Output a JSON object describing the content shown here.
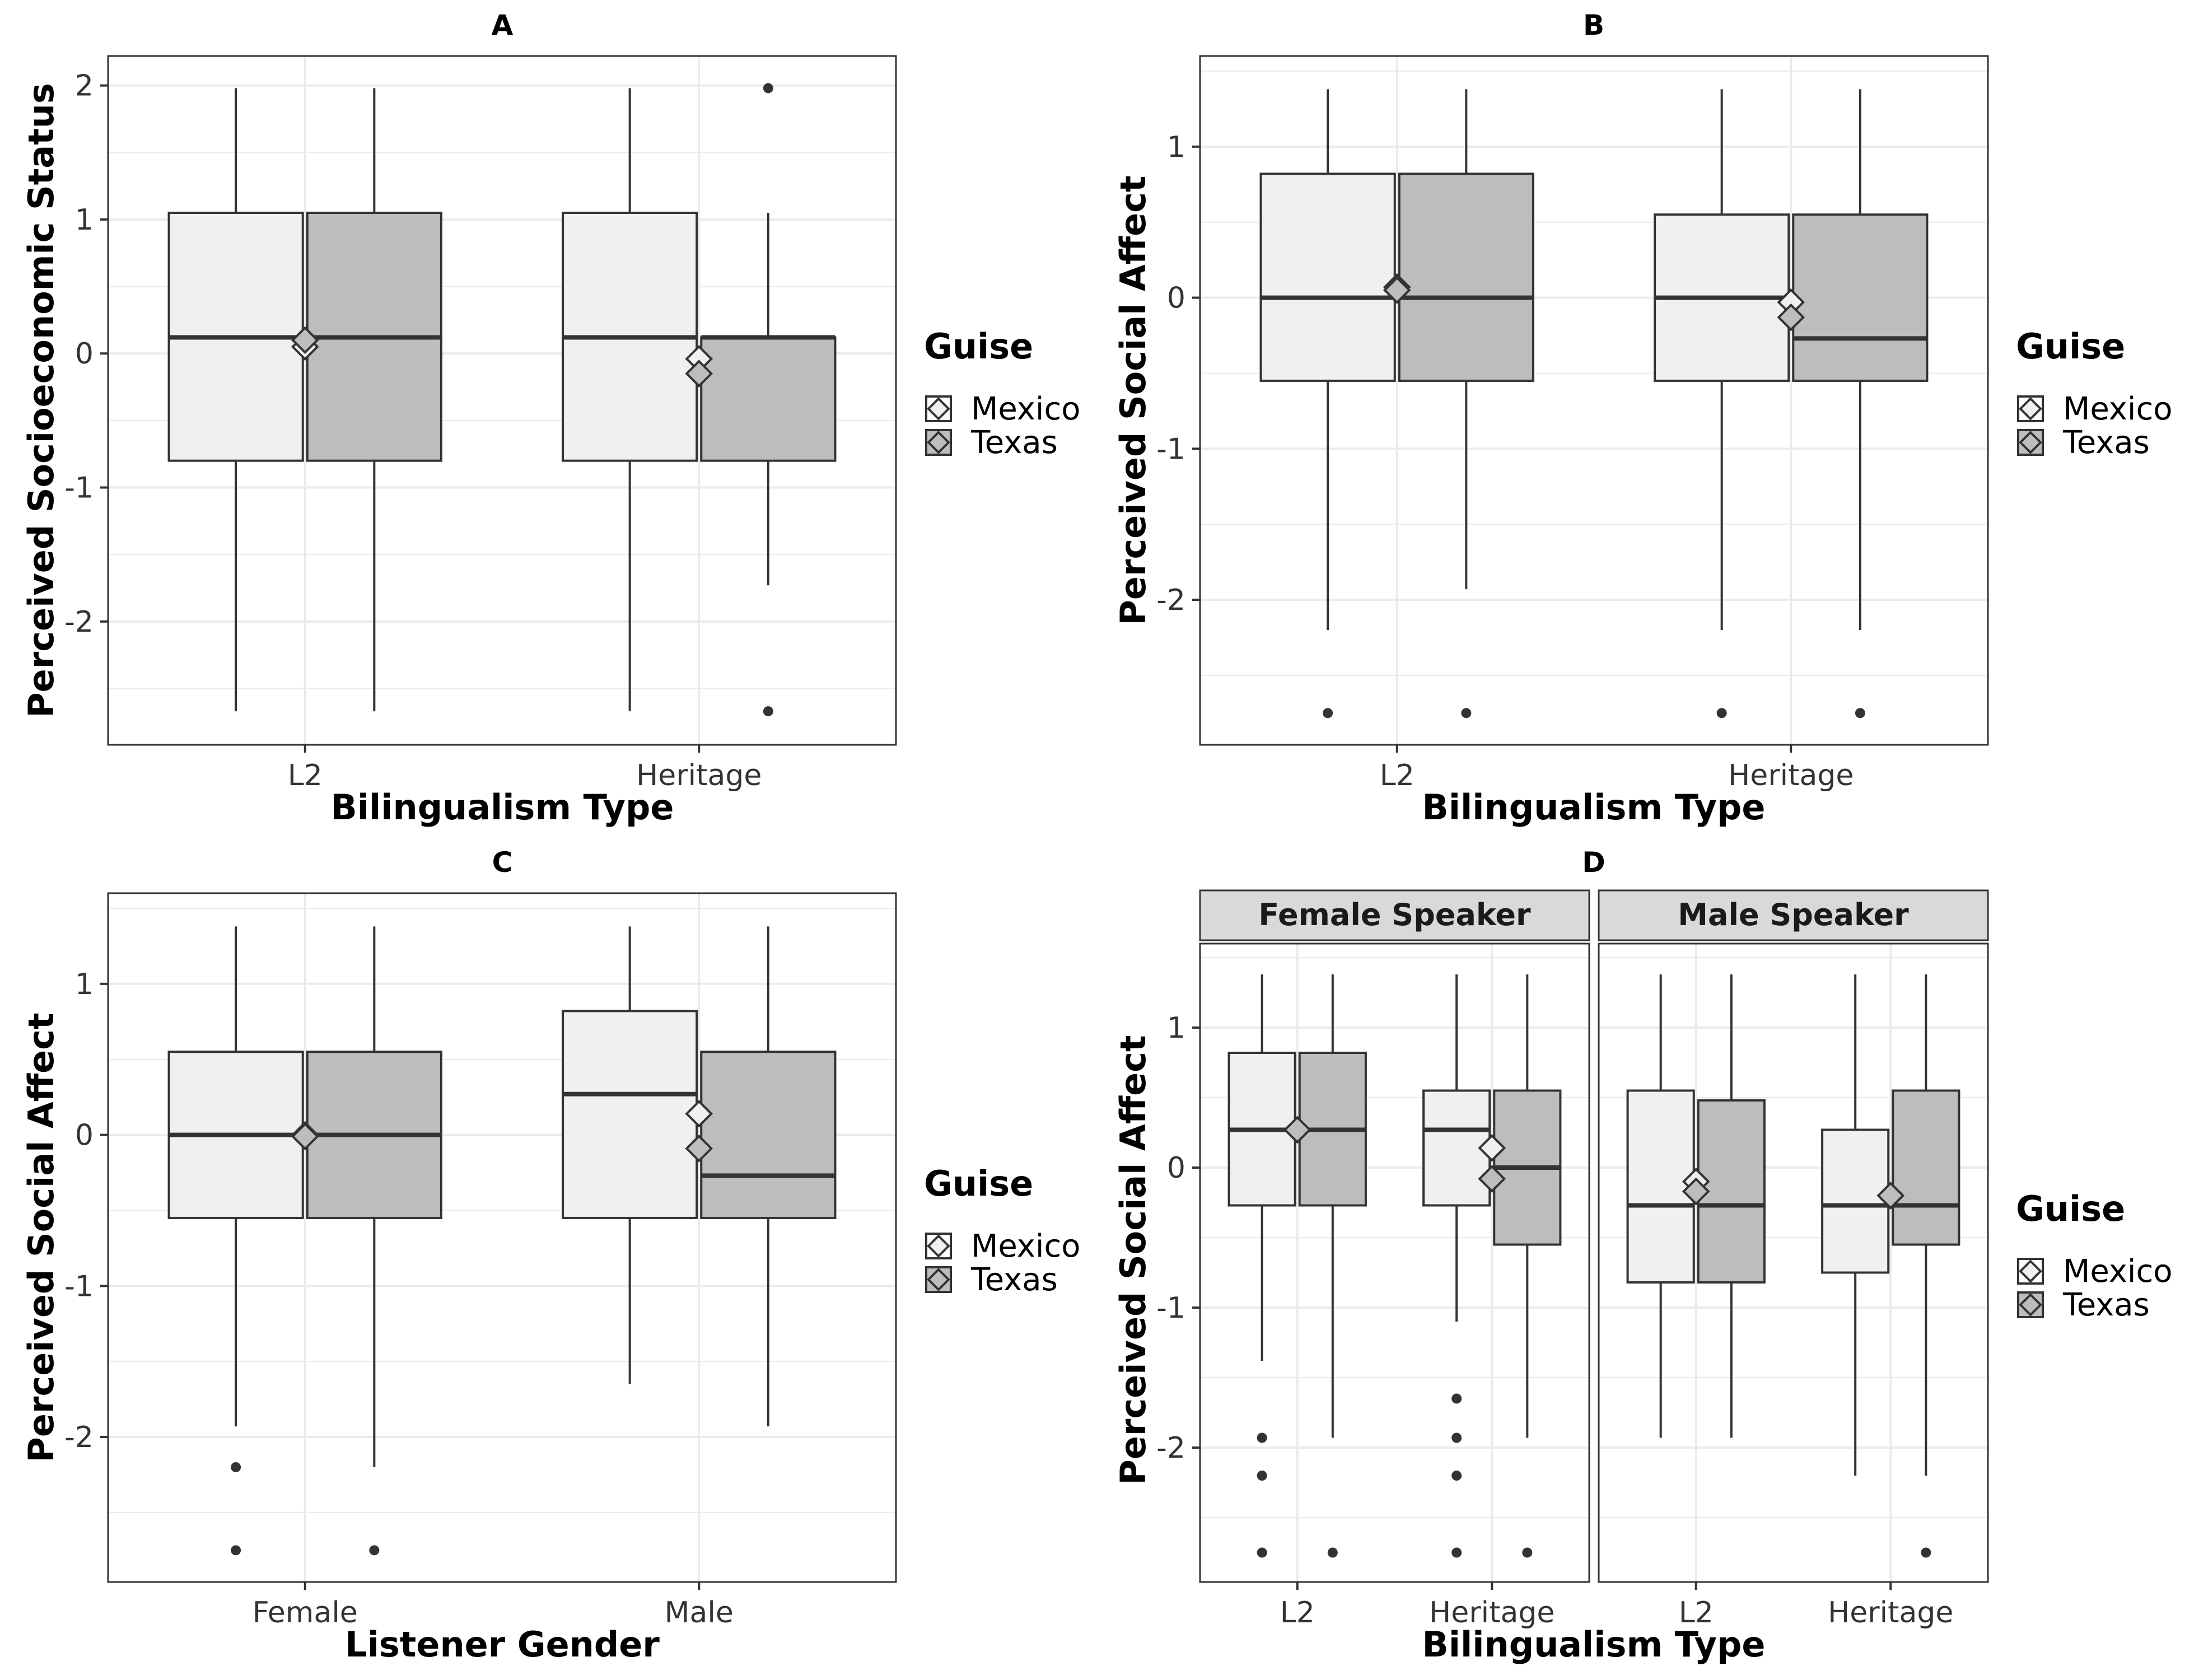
{
  "colors": {
    "mexico_fill": "#f0f0f0",
    "texas_fill": "#bdbdbd",
    "line": "#333333",
    "grid": "#ebebeb",
    "strip_bg": "#d9d9d9"
  },
  "legend_labels": {
    "title": "Guise",
    "mexico": "Mexico",
    "texas": "Texas"
  },
  "chart_data": [
    {
      "panel": "A",
      "type": "boxplot",
      "xlabel": "Bilingualism Type",
      "ylabel": "Perceived Socioeconomic Status",
      "categories": [
        "L2",
        "Heritage"
      ],
      "ylim": [
        -2.92,
        2.22
      ],
      "yticks": [
        2,
        1,
        0,
        -1,
        -2
      ],
      "legend": {
        "title": "Guise",
        "entries": [
          "Mexico",
          "Texas"
        ],
        "position": "right"
      },
      "facets": [
        {
          "strip": "",
          "groups": [
            {
              "category": "L2",
              "boxes": [
                {
                  "series": "Mexico",
                  "min": -2.67,
                  "q1": -0.8,
                  "median": 0.12,
                  "q3": 1.05,
                  "max": 1.98,
                  "mean": 0.05,
                  "outliers": []
                },
                {
                  "series": "Texas",
                  "min": -2.67,
                  "q1": -0.8,
                  "median": 0.12,
                  "q3": 1.05,
                  "max": 1.98,
                  "mean": 0.1,
                  "outliers": []
                }
              ]
            },
            {
              "category": "Heritage",
              "boxes": [
                {
                  "series": "Mexico",
                  "min": -2.67,
                  "q1": -0.8,
                  "median": 0.12,
                  "q3": 1.05,
                  "max": 1.98,
                  "mean": -0.04,
                  "outliers": []
                },
                {
                  "series": "Texas",
                  "min": -1.73,
                  "q1": -0.8,
                  "median": 0.12,
                  "q3": 0.12,
                  "max": 1.05,
                  "mean": -0.15,
                  "outliers": [
                    1.98,
                    -2.67
                  ]
                }
              ]
            }
          ]
        }
      ]
    },
    {
      "panel": "B",
      "type": "boxplot",
      "xlabel": "Bilingualism Type",
      "ylabel": "Perceived Social Affect",
      "categories": [
        "L2",
        "Heritage"
      ],
      "ylim": [
        -2.96,
        1.6
      ],
      "yticks": [
        1,
        0,
        -1,
        -2
      ],
      "legend": {
        "title": "Guise",
        "entries": [
          "Mexico",
          "Texas"
        ],
        "position": "right"
      },
      "facets": [
        {
          "strip": "",
          "groups": [
            {
              "category": "L2",
              "boxes": [
                {
                  "series": "Mexico",
                  "min": -2.2,
                  "q1": -0.55,
                  "median": 0.0,
                  "q3": 0.82,
                  "max": 1.38,
                  "mean": 0.07,
                  "outliers": [
                    -2.75
                  ]
                },
                {
                  "series": "Texas",
                  "min": -1.93,
                  "q1": -0.55,
                  "median": 0.0,
                  "q3": 0.82,
                  "max": 1.38,
                  "mean": 0.05,
                  "outliers": [
                    -2.75
                  ]
                }
              ]
            },
            {
              "category": "Heritage",
              "boxes": [
                {
                  "series": "Mexico",
                  "min": -2.2,
                  "q1": -0.55,
                  "median": 0.0,
                  "q3": 0.55,
                  "max": 1.38,
                  "mean": -0.03,
                  "outliers": [
                    -2.75
                  ]
                },
                {
                  "series": "Texas",
                  "min": -2.2,
                  "q1": -0.55,
                  "median": -0.27,
                  "q3": 0.55,
                  "max": 1.38,
                  "mean": -0.13,
                  "outliers": [
                    -2.75
                  ]
                }
              ]
            }
          ]
        }
      ]
    },
    {
      "panel": "C",
      "type": "boxplot",
      "xlabel": "Listener Gender",
      "ylabel": "Perceived Social Affect",
      "categories": [
        "Female",
        "Male"
      ],
      "ylim": [
        -2.96,
        1.6
      ],
      "yticks": [
        1,
        0,
        -1,
        -2
      ],
      "legend": {
        "title": "Guise",
        "entries": [
          "Mexico",
          "Texas"
        ],
        "position": "right"
      },
      "facets": [
        {
          "strip": "",
          "groups": [
            {
              "category": "Female",
              "boxes": [
                {
                  "series": "Mexico",
                  "min": -1.93,
                  "q1": -0.55,
                  "median": 0.0,
                  "q3": 0.55,
                  "max": 1.38,
                  "mean": 0.0,
                  "outliers": [
                    -2.2,
                    -2.75
                  ]
                },
                {
                  "series": "Texas",
                  "min": -2.2,
                  "q1": -0.55,
                  "median": 0.0,
                  "q3": 0.55,
                  "max": 1.38,
                  "mean": -0.01,
                  "outliers": [
                    -2.75
                  ]
                }
              ]
            },
            {
              "category": "Male",
              "boxes": [
                {
                  "series": "Mexico",
                  "min": -1.65,
                  "q1": -0.55,
                  "median": 0.27,
                  "q3": 0.82,
                  "max": 1.38,
                  "mean": 0.14,
                  "outliers": []
                },
                {
                  "series": "Texas",
                  "min": -1.93,
                  "q1": -0.55,
                  "median": -0.27,
                  "q3": 0.55,
                  "max": 1.38,
                  "mean": -0.09,
                  "outliers": []
                }
              ]
            }
          ]
        }
      ]
    },
    {
      "panel": "D",
      "type": "boxplot",
      "xlabel": "Bilingualism Type",
      "ylabel": "Perceived Social Affect",
      "categories": [
        "L2",
        "Heritage"
      ],
      "ylim": [
        -2.96,
        1.6
      ],
      "yticks": [
        1,
        0,
        -1,
        -2
      ],
      "legend": {
        "title": "Guise",
        "entries": [
          "Mexico",
          "Texas"
        ],
        "position": "right"
      },
      "facets": [
        {
          "strip": "Female Speaker",
          "groups": [
            {
              "category": "L2",
              "boxes": [
                {
                  "series": "Mexico",
                  "min": -1.38,
                  "q1": -0.27,
                  "median": 0.27,
                  "q3": 0.82,
                  "max": 1.38,
                  "mean": 0.27,
                  "outliers": [
                    -1.93,
                    -2.2,
                    -2.75
                  ]
                },
                {
                  "series": "Texas",
                  "min": -1.93,
                  "q1": -0.27,
                  "median": 0.27,
                  "q3": 0.82,
                  "max": 1.38,
                  "mean": 0.27,
                  "outliers": [
                    -2.75
                  ]
                }
              ]
            },
            {
              "category": "Heritage",
              "boxes": [
                {
                  "series": "Mexico",
                  "min": -1.1,
                  "q1": -0.27,
                  "median": 0.27,
                  "q3": 0.55,
                  "max": 1.38,
                  "mean": 0.14,
                  "outliers": [
                    -1.65,
                    -1.93,
                    -2.2,
                    -2.75
                  ]
                },
                {
                  "series": "Texas",
                  "min": -1.93,
                  "q1": -0.55,
                  "median": 0.0,
                  "q3": 0.55,
                  "max": 1.38,
                  "mean": -0.08,
                  "outliers": [
                    -2.75
                  ]
                }
              ]
            }
          ]
        },
        {
          "strip": "Male Speaker",
          "groups": [
            {
              "category": "L2",
              "boxes": [
                {
                  "series": "Mexico",
                  "min": -1.93,
                  "q1": -0.82,
                  "median": -0.27,
                  "q3": 0.55,
                  "max": 1.38,
                  "mean": -0.1,
                  "outliers": []
                },
                {
                  "series": "Texas",
                  "min": -1.93,
                  "q1": -0.82,
                  "median": -0.27,
                  "q3": 0.48,
                  "max": 1.38,
                  "mean": -0.17,
                  "outliers": []
                }
              ]
            },
            {
              "category": "Heritage",
              "boxes": [
                {
                  "series": "Mexico",
                  "min": -2.2,
                  "q1": -0.75,
                  "median": -0.27,
                  "q3": 0.27,
                  "max": 1.38,
                  "mean": -0.2,
                  "outliers": []
                },
                {
                  "series": "Texas",
                  "min": -2.2,
                  "q1": -0.55,
                  "median": -0.27,
                  "q3": 0.55,
                  "max": 1.38,
                  "mean": -0.2,
                  "outliers": [
                    -2.75
                  ]
                }
              ]
            }
          ]
        }
      ]
    }
  ]
}
